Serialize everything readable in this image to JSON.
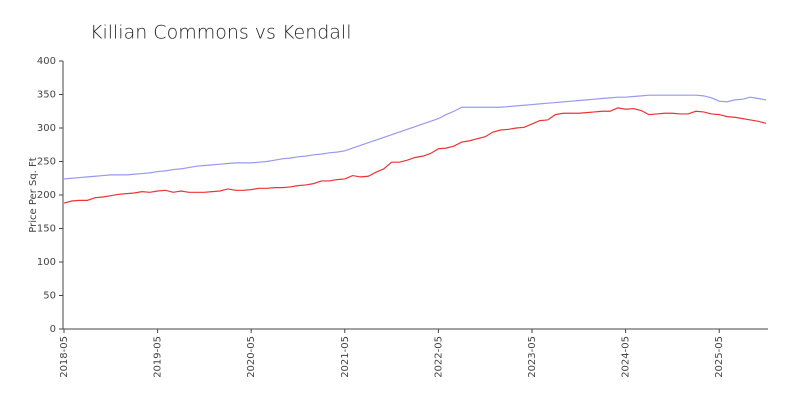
{
  "chart_data": {
    "type": "line",
    "title": "Killian Commons vs Kendall",
    "y_label": "Price Per Sq. Ft",
    "x": [
      "2018-05",
      "2018-06",
      "2018-07",
      "2018-08",
      "2018-09",
      "2018-10",
      "2018-11",
      "2018-12",
      "2019-01",
      "2019-02",
      "2019-03",
      "2019-04",
      "2019-05",
      "2019-06",
      "2019-07",
      "2019-08",
      "2019-09",
      "2019-10",
      "2019-11",
      "2019-12",
      "2020-01",
      "2020-02",
      "2020-03",
      "2020-04",
      "2020-05",
      "2020-06",
      "2020-07",
      "2020-08",
      "2020-09",
      "2020-10",
      "2020-11",
      "2020-12",
      "2021-01",
      "2021-02",
      "2021-03",
      "2021-04",
      "2021-05",
      "2021-06",
      "2021-07",
      "2021-08",
      "2021-09",
      "2021-10",
      "2021-11",
      "2021-12",
      "2022-01",
      "2022-02",
      "2022-03",
      "2022-04",
      "2022-05",
      "2022-06",
      "2022-07",
      "2022-08",
      "2022-09",
      "2022-10",
      "2022-11",
      "2022-12",
      "2023-01",
      "2023-02",
      "2023-03",
      "2023-04",
      "2023-05",
      "2023-06",
      "2023-07",
      "2023-08",
      "2023-09",
      "2023-10",
      "2023-11",
      "2023-12",
      "2024-01",
      "2024-02",
      "2024-03",
      "2024-04",
      "2024-05",
      "2024-06",
      "2024-07",
      "2024-08",
      "2024-09",
      "2024-10",
      "2024-11",
      "2024-12",
      "2025-01",
      "2025-02",
      "2025-03",
      "2025-04",
      "2025-05",
      "2025-06",
      "2025-07",
      "2025-08",
      "2025-09",
      "2025-10",
      "2025-11"
    ],
    "xticks": [
      "2018-05",
      "2019-05",
      "2020-05",
      "2021-05",
      "2022-05",
      "2023-05",
      "2024-05",
      "2025-05"
    ],
    "series": [
      {
        "color": "#9999ee",
        "values": [
          224,
          225,
          226,
          227,
          228,
          229,
          230,
          230,
          230,
          231,
          232,
          233,
          235,
          236,
          238,
          239,
          241,
          243,
          244,
          245,
          246,
          247,
          248,
          248,
          248,
          249,
          250,
          252,
          254,
          255,
          257,
          258,
          260,
          261,
          263,
          264,
          266,
          270,
          274,
          278,
          282,
          286,
          290,
          294,
          298,
          302,
          306,
          310,
          314,
          320,
          325,
          331,
          331,
          331,
          331,
          331,
          331,
          332,
          333,
          334,
          335,
          336,
          337,
          338,
          339,
          340,
          341,
          342,
          343,
          344,
          345,
          346,
          346,
          347,
          348,
          349,
          349,
          349,
          349,
          349,
          349,
          349,
          348,
          345,
          340,
          339,
          342,
          343,
          346,
          344,
          342
        ]
      },
      {
        "color": "#ee3333",
        "values": [
          188,
          191,
          192,
          192,
          196,
          197,
          199,
          201,
          202,
          203,
          205,
          204,
          206,
          207,
          204,
          206,
          204,
          204,
          204,
          205,
          206,
          209,
          207,
          207,
          208,
          210,
          210,
          211,
          211,
          212,
          214,
          215,
          217,
          221,
          221,
          223,
          224,
          229,
          227,
          228,
          234,
          239,
          249,
          249,
          252,
          256,
          258,
          262,
          269,
          270,
          273,
          279,
          281,
          284,
          287,
          294,
          297,
          298,
          300,
          301,
          306,
          311,
          312,
          320,
          322,
          322,
          322,
          323,
          324,
          325,
          325,
          330,
          328,
          329,
          326,
          320,
          321,
          322,
          322,
          321,
          321,
          325,
          324,
          321,
          320,
          317,
          316,
          314,
          312,
          310,
          307
        ]
      }
    ],
    "ylim": [
      0,
      400
    ],
    "yticks": [
      0,
      50,
      100,
      150,
      200,
      250,
      300,
      350,
      400
    ]
  }
}
